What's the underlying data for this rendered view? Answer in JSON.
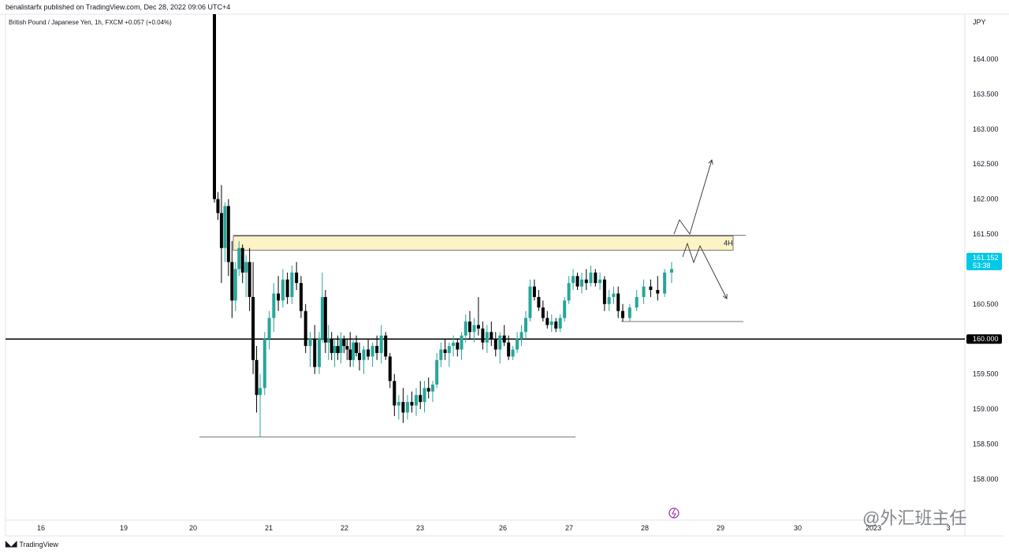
{
  "header": {
    "published_by": "benalistarfx published on TradingView.com, Dec 28, 2022 09:06 UTC+4",
    "symbol_info": "British Pound / Japanese Yen, 1h, FXCM  +0.057 (+0.04%)"
  },
  "footer": {
    "brand": "TradingView",
    "watermark": "@外汇班主任"
  },
  "colors": {
    "up": "#26a69a",
    "down": "#000000",
    "zone_fill": "#fdf3c6",
    "zone_border": "#555555",
    "price_tag": "#00c8e6",
    "level_tag": "#000000"
  },
  "chart_data": {
    "type": "candlestick",
    "currency_label": "JPY",
    "x_ticks": [
      "16",
      "19",
      "20",
      "21",
      "22",
      "23",
      "26",
      "27",
      "28",
      "29",
      "30",
      "2023",
      "3"
    ],
    "y_ticks": [
      "164.000",
      "163.500",
      "163.000",
      "162.500",
      "162.000",
      "161.500",
      "160.500",
      "159.500",
      "159.000",
      "158.500",
      "158.000"
    ],
    "ylim": [
      157.55,
      164.65
    ],
    "current_price": "161.152",
    "countdown": "53:38",
    "horizontal_level": "160.000",
    "zone_label": "4H",
    "zone": {
      "low": 161.27,
      "high": 161.47
    },
    "lines": [
      {
        "from_day": 20.1,
        "to_day": 26.95,
        "price": 158.6
      },
      {
        "from_day": 27.7,
        "to_day": 29.3,
        "price": 160.25
      }
    ],
    "projection_paths": [
      [
        [
          28.38,
          161.5
        ],
        [
          28.45,
          161.7
        ],
        [
          28.55,
          161.5
        ],
        [
          28.85,
          162.55
        ]
      ],
      [
        [
          28.45,
          161.2
        ],
        [
          28.6,
          161.3
        ],
        [
          28.7,
          161.1
        ],
        [
          28.8,
          161.3
        ],
        [
          29.1,
          160.55
        ]
      ]
    ],
    "candles": [
      [
        20.3,
        169.0,
        169.0,
        161.95,
        162.0
      ],
      [
        20.35,
        162.0,
        162.1,
        161.7,
        161.8
      ],
      [
        20.4,
        161.8,
        162.2,
        160.8,
        161.3
      ],
      [
        20.45,
        161.3,
        161.95,
        161.1,
        161.9
      ],
      [
        20.5,
        161.9,
        162.0,
        160.9,
        161.1
      ],
      [
        20.55,
        161.1,
        161.4,
        160.3,
        160.55
      ],
      [
        20.6,
        160.55,
        161.1,
        160.4,
        161.0
      ],
      [
        20.65,
        161.0,
        161.4,
        160.9,
        161.3
      ],
      [
        20.7,
        161.3,
        161.35,
        160.8,
        160.95
      ],
      [
        20.75,
        160.95,
        161.2,
        160.6,
        161.1
      ],
      [
        20.8,
        161.1,
        161.3,
        160.4,
        160.6
      ],
      [
        20.85,
        160.6,
        161.1,
        159.5,
        159.7
      ],
      [
        20.9,
        159.7,
        159.9,
        158.95,
        159.2
      ],
      [
        20.95,
        159.2,
        159.5,
        158.6,
        159.3
      ],
      [
        21.0,
        159.3,
        160.1,
        159.2,
        160.0
      ],
      [
        21.05,
        160.0,
        160.4,
        159.85,
        160.3
      ],
      [
        21.1,
        160.3,
        160.8,
        160.1,
        160.65
      ],
      [
        21.15,
        160.65,
        160.9,
        160.4,
        160.55
      ],
      [
        21.2,
        160.55,
        161.0,
        160.45,
        160.85
      ],
      [
        21.25,
        160.85,
        160.95,
        160.5,
        160.6
      ],
      [
        21.3,
        160.6,
        161.05,
        160.5,
        160.95
      ],
      [
        21.35,
        160.95,
        161.1,
        160.7,
        160.8
      ],
      [
        21.4,
        160.8,
        160.9,
        160.3,
        160.4
      ],
      [
        21.45,
        160.4,
        160.5,
        159.8,
        159.9
      ],
      [
        21.5,
        159.9,
        160.1,
        159.6,
        160.0
      ],
      [
        21.55,
        160.0,
        160.2,
        159.5,
        159.6
      ],
      [
        21.6,
        159.6,
        160.1,
        159.5,
        160.0
      ],
      [
        21.65,
        160.0,
        160.95,
        159.95,
        160.6
      ],
      [
        21.7,
        160.6,
        160.7,
        159.8,
        159.95
      ],
      [
        21.75,
        159.95,
        160.2,
        159.7,
        160.0
      ],
      [
        21.8,
        160.0,
        160.1,
        159.7,
        159.8
      ],
      [
        21.85,
        159.8,
        160.0,
        159.6,
        159.9
      ],
      [
        21.9,
        159.9,
        160.05,
        159.7,
        159.8
      ],
      [
        21.95,
        159.8,
        160.1,
        159.65,
        160.0
      ],
      [
        22.0,
        160.0,
        160.05,
        159.8,
        159.9
      ],
      [
        22.05,
        159.9,
        160.0,
        159.7,
        159.85
      ],
      [
        22.1,
        159.85,
        160.1,
        159.6,
        159.7
      ],
      [
        22.15,
        159.7,
        160.0,
        159.6,
        159.95
      ],
      [
        22.2,
        159.95,
        160.05,
        159.75,
        159.8
      ],
      [
        22.25,
        159.8,
        159.95,
        159.55,
        159.7
      ],
      [
        22.3,
        159.7,
        159.9,
        159.5,
        159.85
      ],
      [
        22.35,
        159.85,
        160.0,
        159.7,
        159.75
      ],
      [
        22.4,
        159.75,
        159.95,
        159.6,
        159.9
      ],
      [
        22.45,
        159.9,
        160.05,
        159.7,
        159.8
      ],
      [
        22.5,
        159.8,
        160.2,
        159.65,
        160.05
      ],
      [
        22.55,
        160.05,
        160.1,
        159.7,
        159.75
      ],
      [
        22.6,
        159.75,
        159.8,
        159.3,
        159.4
      ],
      [
        22.65,
        159.4,
        159.5,
        158.9,
        159.05
      ],
      [
        22.7,
        159.05,
        159.2,
        158.85,
        159.1
      ],
      [
        22.75,
        159.1,
        159.3,
        158.8,
        158.95
      ],
      [
        22.8,
        158.95,
        159.2,
        158.85,
        159.1
      ],
      [
        22.85,
        159.1,
        159.25,
        158.95,
        159.05
      ],
      [
        22.9,
        159.05,
        159.3,
        158.9,
        159.2
      ],
      [
        22.95,
        159.2,
        159.4,
        159.0,
        159.1
      ],
      [
        23.0,
        159.1,
        159.4,
        158.95,
        159.3
      ],
      [
        23.05,
        159.3,
        159.45,
        159.15,
        159.25
      ],
      [
        23.1,
        159.25,
        159.4,
        159.1,
        159.35
      ],
      [
        23.15,
        159.35,
        159.8,
        159.3,
        159.7
      ],
      [
        23.2,
        159.7,
        159.95,
        159.6,
        159.85
      ],
      [
        23.25,
        159.85,
        160.0,
        159.7,
        159.8
      ],
      [
        23.3,
        159.8,
        159.95,
        159.6,
        159.9
      ],
      [
        23.35,
        159.9,
        160.05,
        159.75,
        159.95
      ],
      [
        23.4,
        159.95,
        160.0,
        159.75,
        159.85
      ],
      [
        23.45,
        159.85,
        160.1,
        159.7,
        160.05
      ],
      [
        23.5,
        160.05,
        160.35,
        159.95,
        160.25
      ],
      [
        23.55,
        160.25,
        160.4,
        160.0,
        160.1
      ],
      [
        23.6,
        160.1,
        160.3,
        159.95,
        160.2
      ],
      [
        23.65,
        160.2,
        160.6,
        160.05,
        160.15
      ],
      [
        23.7,
        160.15,
        160.25,
        159.85,
        159.95
      ],
      [
        23.75,
        159.95,
        160.2,
        159.8,
        160.1
      ],
      [
        23.8,
        160.1,
        160.25,
        159.9,
        160.0
      ],
      [
        23.85,
        160.0,
        160.1,
        159.75,
        159.85
      ],
      [
        23.9,
        159.85,
        160.1,
        159.65,
        160.05
      ],
      [
        23.95,
        160.05,
        160.2,
        159.9,
        159.95
      ],
      [
        24.0,
        159.95,
        160.05,
        159.7,
        159.75
      ],
      [
        24.05,
        159.75,
        159.9,
        159.7,
        159.85
      ],
      [
        24.1,
        159.85,
        160.1,
        159.8,
        160.0
      ],
      [
        24.15,
        160.0,
        160.2,
        159.9,
        160.1
      ],
      [
        24.2,
        160.1,
        160.4,
        160.0,
        160.3
      ],
      [
        24.25,
        160.3,
        160.85,
        160.25,
        160.75
      ],
      [
        24.3,
        160.75,
        160.85,
        160.55,
        160.6
      ],
      [
        24.35,
        160.6,
        160.7,
        160.4,
        160.45
      ],
      [
        24.4,
        160.45,
        160.55,
        160.25,
        160.3
      ],
      [
        24.45,
        160.3,
        160.4,
        160.15,
        160.2
      ],
      [
        24.5,
        160.2,
        160.35,
        160.1,
        160.25
      ],
      [
        24.55,
        160.25,
        160.3,
        160.1,
        160.15
      ],
      [
        24.6,
        160.15,
        160.35,
        160.1,
        160.3
      ],
      [
        24.65,
        160.3,
        160.6,
        160.25,
        160.55
      ],
      [
        24.7,
        160.55,
        160.9,
        160.5,
        160.8
      ],
      [
        24.75,
        160.8,
        161.0,
        160.7,
        160.9
      ],
      [
        24.8,
        160.9,
        160.95,
        160.7,
        160.75
      ],
      [
        24.85,
        160.75,
        160.95,
        160.65,
        160.85
      ],
      [
        24.9,
        160.85,
        161.0,
        160.7,
        160.8
      ],
      [
        24.95,
        160.8,
        161.05,
        160.75,
        160.95
      ],
      [
        25.0,
        160.95,
        161.0,
        160.75,
        160.8
      ],
      [
        25.05,
        160.8,
        160.95,
        160.7,
        160.85
      ],
      [
        25.1,
        160.85,
        160.9,
        160.4,
        160.5
      ],
      [
        25.15,
        160.5,
        160.7,
        160.4,
        160.6
      ],
      [
        25.2,
        160.6,
        160.75,
        160.5,
        160.65
      ],
      [
        25.25,
        160.65,
        160.75,
        160.3,
        160.4
      ],
      [
        25.3,
        160.4,
        160.5,
        160.25,
        160.3
      ],
      [
        25.35,
        160.3,
        160.5,
        160.25,
        160.45
      ],
      [
        25.4,
        160.45,
        160.7,
        160.4,
        160.6
      ],
      [
        25.45,
        160.6,
        160.85,
        160.5,
        160.75
      ],
      [
        25.5,
        160.75,
        160.85,
        160.6,
        160.7
      ],
      [
        25.55,
        160.7,
        160.9,
        160.55,
        160.65
      ],
      [
        25.6,
        160.65,
        161.0,
        160.6,
        160.95
      ],
      [
        25.65,
        160.95,
        161.1,
        160.8,
        161.0
      ]
    ]
  }
}
